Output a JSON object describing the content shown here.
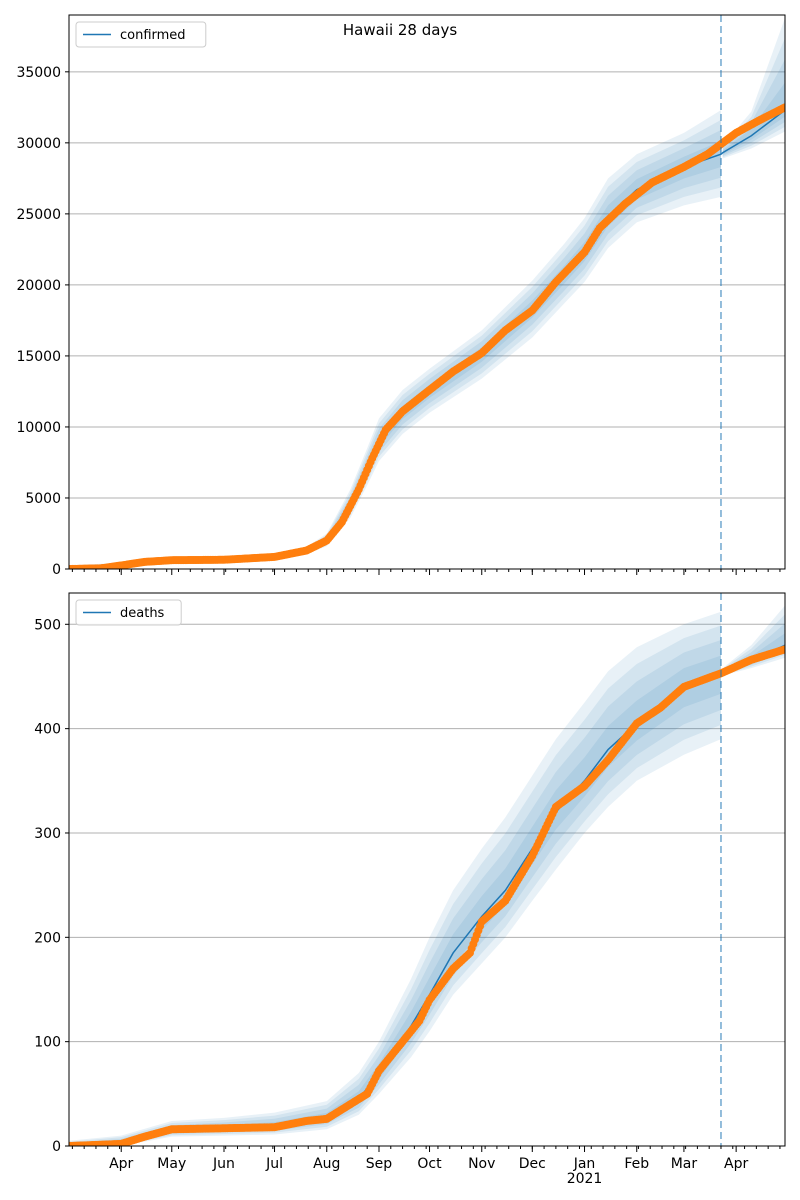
{
  "figure": {
    "title": "Hawaii 28 days",
    "colors": {
      "model": "#1f77b4",
      "observed": "#ff7f0e",
      "band": "#1f77b4",
      "grid": "#b0b0b0"
    }
  },
  "chart_data": [
    {
      "type": "line",
      "series_name": "confirmed",
      "legend": "top-left",
      "grid": "horizontal",
      "ylim": [
        0,
        39000
      ],
      "yticks": [
        0,
        5000,
        10000,
        15000,
        20000,
        25000,
        30000,
        35000
      ],
      "xlim": [
        "2020-03-01",
        "2021-04-30"
      ],
      "forecast_start": "2021-03-23",
      "month_ticks": [
        {
          "date": "2020-04-01",
          "label": "Apr"
        },
        {
          "date": "2020-05-01",
          "label": "May"
        },
        {
          "date": "2020-06-01",
          "label": "Jun"
        },
        {
          "date": "2020-07-01",
          "label": "Jul"
        },
        {
          "date": "2020-08-01",
          "label": "Aug"
        },
        {
          "date": "2020-09-01",
          "label": "Sep"
        },
        {
          "date": "2020-10-01",
          "label": "Oct"
        },
        {
          "date": "2020-11-01",
          "label": "Nov"
        },
        {
          "date": "2020-12-01",
          "label": "Dec"
        },
        {
          "date": "2021-01-01",
          "label": "Jan"
        },
        {
          "date": "2021-02-01",
          "label": "Feb"
        },
        {
          "date": "2021-03-01",
          "label": "Mar"
        },
        {
          "date": "2021-04-01",
          "label": "Apr"
        }
      ],
      "model_and_band": [
        {
          "date": "2020-03-01",
          "y": 0,
          "lo95": 0,
          "hi95": 250
        },
        {
          "date": "2020-04-01",
          "y": 250,
          "lo95": 100,
          "hi95": 450
        },
        {
          "date": "2020-05-01",
          "y": 600,
          "lo95": 500,
          "hi95": 750
        },
        {
          "date": "2020-06-01",
          "y": 650,
          "lo95": 550,
          "hi95": 800
        },
        {
          "date": "2020-07-01",
          "y": 850,
          "lo95": 700,
          "hi95": 1000
        },
        {
          "date": "2020-07-20",
          "y": 1300,
          "lo95": 1050,
          "hi95": 1550
        },
        {
          "date": "2020-08-01",
          "y": 2000,
          "lo95": 1600,
          "hi95": 2500
        },
        {
          "date": "2020-08-15",
          "y": 4500,
          "lo95": 3600,
          "hi95": 5600
        },
        {
          "date": "2020-08-25",
          "y": 7200,
          "lo95": 5900,
          "hi95": 8500
        },
        {
          "date": "2020-09-01",
          "y": 9000,
          "lo95": 7600,
          "hi95": 10600
        },
        {
          "date": "2020-09-15",
          "y": 11000,
          "lo95": 9500,
          "hi95": 12600
        },
        {
          "date": "2020-10-01",
          "y": 12500,
          "lo95": 11000,
          "hi95": 14100
        },
        {
          "date": "2020-11-01",
          "y": 15100,
          "lo95": 13400,
          "hi95": 16800
        },
        {
          "date": "2020-12-01",
          "y": 18300,
          "lo95": 16300,
          "hi95": 20300
        },
        {
          "date": "2020-12-20",
          "y": 20700,
          "lo95": 18700,
          "hi95": 22900
        },
        {
          "date": "2021-01-01",
          "y": 22300,
          "lo95": 20200,
          "hi95": 24700
        },
        {
          "date": "2021-01-15",
          "y": 24800,
          "lo95": 22600,
          "hi95": 27500
        },
        {
          "date": "2021-02-01",
          "y": 26700,
          "lo95": 24400,
          "hi95": 29200
        },
        {
          "date": "2021-03-01",
          "y": 28300,
          "lo95": 25600,
          "hi95": 30700
        },
        {
          "date": "2021-03-23",
          "y": 29200,
          "lo95": 26200,
          "hi95": 32300
        },
        {
          "date": "2021-03-24",
          "y": 29300,
          "lo95": 28900,
          "hi95": 29800
        },
        {
          "date": "2021-04-10",
          "y": 30500,
          "lo95": 29600,
          "hi95": 32200
        },
        {
          "date": "2021-04-30",
          "y": 32300,
          "lo95": 30800,
          "hi95": 38800
        }
      ],
      "observed": [
        {
          "date": "2020-03-01",
          "y": 0
        },
        {
          "date": "2020-03-20",
          "y": 50
        },
        {
          "date": "2020-04-01",
          "y": 250
        },
        {
          "date": "2020-04-15",
          "y": 500
        },
        {
          "date": "2020-05-01",
          "y": 620
        },
        {
          "date": "2020-06-01",
          "y": 650
        },
        {
          "date": "2020-07-01",
          "y": 850
        },
        {
          "date": "2020-07-20",
          "y": 1300
        },
        {
          "date": "2020-08-01",
          "y": 2000
        },
        {
          "date": "2020-08-10",
          "y": 3300
        },
        {
          "date": "2020-08-20",
          "y": 5600
        },
        {
          "date": "2020-08-28",
          "y": 7800
        },
        {
          "date": "2020-09-05",
          "y": 9800
        },
        {
          "date": "2020-09-15",
          "y": 11100
        },
        {
          "date": "2020-10-01",
          "y": 12600
        },
        {
          "date": "2020-10-15",
          "y": 13900
        },
        {
          "date": "2020-11-01",
          "y": 15200
        },
        {
          "date": "2020-11-15",
          "y": 16800
        },
        {
          "date": "2020-12-01",
          "y": 18200
        },
        {
          "date": "2020-12-15",
          "y": 20200
        },
        {
          "date": "2021-01-01",
          "y": 22300
        },
        {
          "date": "2021-01-10",
          "y": 24000
        },
        {
          "date": "2021-01-25",
          "y": 25700
        },
        {
          "date": "2021-02-10",
          "y": 27200
        },
        {
          "date": "2021-03-01",
          "y": 28300
        },
        {
          "date": "2021-03-15",
          "y": 29200
        },
        {
          "date": "2021-04-01",
          "y": 30700
        },
        {
          "date": "2021-04-15",
          "y": 31600
        },
        {
          "date": "2021-04-30",
          "y": 32500
        }
      ]
    },
    {
      "type": "line",
      "series_name": "deaths",
      "legend": "top-left",
      "grid": "horizontal",
      "ylim": [
        0,
        530
      ],
      "yticks": [
        0,
        100,
        200,
        300,
        400,
        500
      ],
      "xlim": [
        "2020-03-01",
        "2021-04-30"
      ],
      "forecast_start": "2021-03-23",
      "xaxis_year_label": "2021",
      "month_ticks": [
        {
          "date": "2020-04-01",
          "label": "Apr"
        },
        {
          "date": "2020-05-01",
          "label": "May"
        },
        {
          "date": "2020-06-01",
          "label": "Jun"
        },
        {
          "date": "2020-07-01",
          "label": "Jul"
        },
        {
          "date": "2020-08-01",
          "label": "Aug"
        },
        {
          "date": "2020-09-01",
          "label": "Sep"
        },
        {
          "date": "2020-10-01",
          "label": "Oct"
        },
        {
          "date": "2020-11-01",
          "label": "Nov"
        },
        {
          "date": "2020-12-01",
          "label": "Dec"
        },
        {
          "date": "2021-01-01",
          "label": "Jan"
        },
        {
          "date": "2021-02-01",
          "label": "Feb"
        },
        {
          "date": "2021-03-01",
          "label": "Mar"
        },
        {
          "date": "2021-04-01",
          "label": "Apr"
        }
      ],
      "model_and_band": [
        {
          "date": "2020-03-01",
          "y": 0,
          "lo95": 0,
          "hi95": 5
        },
        {
          "date": "2020-04-01",
          "y": 3,
          "lo95": 0,
          "hi95": 10
        },
        {
          "date": "2020-05-01",
          "y": 15,
          "lo95": 9,
          "hi95": 24
        },
        {
          "date": "2020-06-01",
          "y": 17,
          "lo95": 10,
          "hi95": 27
        },
        {
          "date": "2020-07-01",
          "y": 19,
          "lo95": 11,
          "hi95": 32
        },
        {
          "date": "2020-08-01",
          "y": 27,
          "lo95": 16,
          "hi95": 43
        },
        {
          "date": "2020-08-20",
          "y": 45,
          "lo95": 30,
          "hi95": 70
        },
        {
          "date": "2020-09-01",
          "y": 70,
          "lo95": 50,
          "hi95": 100
        },
        {
          "date": "2020-09-20",
          "y": 115,
          "lo95": 85,
          "hi95": 160
        },
        {
          "date": "2020-10-01",
          "y": 145,
          "lo95": 110,
          "hi95": 200
        },
        {
          "date": "2020-10-15",
          "y": 185,
          "lo95": 145,
          "hi95": 245
        },
        {
          "date": "2020-11-01",
          "y": 220,
          "lo95": 175,
          "hi95": 285
        },
        {
          "date": "2020-11-15",
          "y": 245,
          "lo95": 200,
          "hi95": 315
        },
        {
          "date": "2020-12-01",
          "y": 285,
          "lo95": 235,
          "hi95": 355
        },
        {
          "date": "2020-12-15",
          "y": 320,
          "lo95": 265,
          "hi95": 390
        },
        {
          "date": "2021-01-01",
          "y": 350,
          "lo95": 300,
          "hi95": 425
        },
        {
          "date": "2021-01-15",
          "y": 380,
          "lo95": 325,
          "hi95": 455
        },
        {
          "date": "2021-02-01",
          "y": 405,
          "lo95": 350,
          "hi95": 478
        },
        {
          "date": "2021-03-01",
          "y": 440,
          "lo95": 375,
          "hi95": 500
        },
        {
          "date": "2021-03-23",
          "y": 452,
          "lo95": 390,
          "hi95": 512
        },
        {
          "date": "2021-03-24",
          "y": 454,
          "lo95": 451,
          "hi95": 458
        },
        {
          "date": "2021-04-10",
          "y": 465,
          "lo95": 458,
          "hi95": 480
        },
        {
          "date": "2021-04-30",
          "y": 480,
          "lo95": 468,
          "hi95": 518
        }
      ],
      "observed": [
        {
          "date": "2020-03-01",
          "y": 0
        },
        {
          "date": "2020-04-01",
          "y": 2
        },
        {
          "date": "2020-04-15",
          "y": 9
        },
        {
          "date": "2020-05-01",
          "y": 16
        },
        {
          "date": "2020-06-01",
          "y": 17
        },
        {
          "date": "2020-07-01",
          "y": 18
        },
        {
          "date": "2020-07-20",
          "y": 24
        },
        {
          "date": "2020-08-01",
          "y": 26
        },
        {
          "date": "2020-08-15",
          "y": 40
        },
        {
          "date": "2020-08-25",
          "y": 50
        },
        {
          "date": "2020-09-01",
          "y": 72
        },
        {
          "date": "2020-09-15",
          "y": 100
        },
        {
          "date": "2020-09-25",
          "y": 120
        },
        {
          "date": "2020-10-01",
          "y": 140
        },
        {
          "date": "2020-10-15",
          "y": 170
        },
        {
          "date": "2020-10-25",
          "y": 185
        },
        {
          "date": "2020-11-01",
          "y": 215
        },
        {
          "date": "2020-11-15",
          "y": 235
        },
        {
          "date": "2020-12-01",
          "y": 278
        },
        {
          "date": "2020-12-15",
          "y": 325
        },
        {
          "date": "2021-01-01",
          "y": 345
        },
        {
          "date": "2021-01-15",
          "y": 370
        },
        {
          "date": "2021-02-01",
          "y": 405
        },
        {
          "date": "2021-02-15",
          "y": 420
        },
        {
          "date": "2021-03-01",
          "y": 440
        },
        {
          "date": "2021-03-23",
          "y": 453
        },
        {
          "date": "2021-04-10",
          "y": 466
        },
        {
          "date": "2021-04-30",
          "y": 476
        }
      ]
    }
  ]
}
